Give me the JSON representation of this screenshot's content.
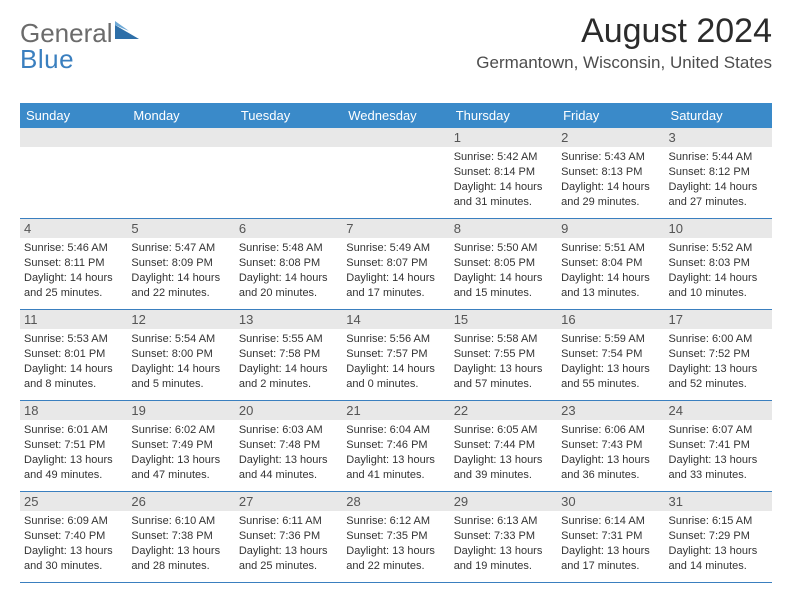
{
  "brand": {
    "word1": "General",
    "word2": "Blue"
  },
  "title": "August 2024",
  "location": "Germantown, Wisconsin, United States",
  "colors": {
    "header_bg": "#3a8ac9",
    "accent": "#3a7fbf",
    "daynum_bg": "#e8e8e8",
    "text": "#333333",
    "logo_gray": "#6b6b6b"
  },
  "weekdays": [
    "Sunday",
    "Monday",
    "Tuesday",
    "Wednesday",
    "Thursday",
    "Friday",
    "Saturday"
  ],
  "weeks": [
    [
      {
        "n": "",
        "sr": "",
        "ss": "",
        "dl": ""
      },
      {
        "n": "",
        "sr": "",
        "ss": "",
        "dl": ""
      },
      {
        "n": "",
        "sr": "",
        "ss": "",
        "dl": ""
      },
      {
        "n": "",
        "sr": "",
        "ss": "",
        "dl": ""
      },
      {
        "n": "1",
        "sr": "Sunrise: 5:42 AM",
        "ss": "Sunset: 8:14 PM",
        "dl": "Daylight: 14 hours and 31 minutes."
      },
      {
        "n": "2",
        "sr": "Sunrise: 5:43 AM",
        "ss": "Sunset: 8:13 PM",
        "dl": "Daylight: 14 hours and 29 minutes."
      },
      {
        "n": "3",
        "sr": "Sunrise: 5:44 AM",
        "ss": "Sunset: 8:12 PM",
        "dl": "Daylight: 14 hours and 27 minutes."
      }
    ],
    [
      {
        "n": "4",
        "sr": "Sunrise: 5:46 AM",
        "ss": "Sunset: 8:11 PM",
        "dl": "Daylight: 14 hours and 25 minutes."
      },
      {
        "n": "5",
        "sr": "Sunrise: 5:47 AM",
        "ss": "Sunset: 8:09 PM",
        "dl": "Daylight: 14 hours and 22 minutes."
      },
      {
        "n": "6",
        "sr": "Sunrise: 5:48 AM",
        "ss": "Sunset: 8:08 PM",
        "dl": "Daylight: 14 hours and 20 minutes."
      },
      {
        "n": "7",
        "sr": "Sunrise: 5:49 AM",
        "ss": "Sunset: 8:07 PM",
        "dl": "Daylight: 14 hours and 17 minutes."
      },
      {
        "n": "8",
        "sr": "Sunrise: 5:50 AM",
        "ss": "Sunset: 8:05 PM",
        "dl": "Daylight: 14 hours and 15 minutes."
      },
      {
        "n": "9",
        "sr": "Sunrise: 5:51 AM",
        "ss": "Sunset: 8:04 PM",
        "dl": "Daylight: 14 hours and 13 minutes."
      },
      {
        "n": "10",
        "sr": "Sunrise: 5:52 AM",
        "ss": "Sunset: 8:03 PM",
        "dl": "Daylight: 14 hours and 10 minutes."
      }
    ],
    [
      {
        "n": "11",
        "sr": "Sunrise: 5:53 AM",
        "ss": "Sunset: 8:01 PM",
        "dl": "Daylight: 14 hours and 8 minutes."
      },
      {
        "n": "12",
        "sr": "Sunrise: 5:54 AM",
        "ss": "Sunset: 8:00 PM",
        "dl": "Daylight: 14 hours and 5 minutes."
      },
      {
        "n": "13",
        "sr": "Sunrise: 5:55 AM",
        "ss": "Sunset: 7:58 PM",
        "dl": "Daylight: 14 hours and 2 minutes."
      },
      {
        "n": "14",
        "sr": "Sunrise: 5:56 AM",
        "ss": "Sunset: 7:57 PM",
        "dl": "Daylight: 14 hours and 0 minutes."
      },
      {
        "n": "15",
        "sr": "Sunrise: 5:58 AM",
        "ss": "Sunset: 7:55 PM",
        "dl": "Daylight: 13 hours and 57 minutes."
      },
      {
        "n": "16",
        "sr": "Sunrise: 5:59 AM",
        "ss": "Sunset: 7:54 PM",
        "dl": "Daylight: 13 hours and 55 minutes."
      },
      {
        "n": "17",
        "sr": "Sunrise: 6:00 AM",
        "ss": "Sunset: 7:52 PM",
        "dl": "Daylight: 13 hours and 52 minutes."
      }
    ],
    [
      {
        "n": "18",
        "sr": "Sunrise: 6:01 AM",
        "ss": "Sunset: 7:51 PM",
        "dl": "Daylight: 13 hours and 49 minutes."
      },
      {
        "n": "19",
        "sr": "Sunrise: 6:02 AM",
        "ss": "Sunset: 7:49 PM",
        "dl": "Daylight: 13 hours and 47 minutes."
      },
      {
        "n": "20",
        "sr": "Sunrise: 6:03 AM",
        "ss": "Sunset: 7:48 PM",
        "dl": "Daylight: 13 hours and 44 minutes."
      },
      {
        "n": "21",
        "sr": "Sunrise: 6:04 AM",
        "ss": "Sunset: 7:46 PM",
        "dl": "Daylight: 13 hours and 41 minutes."
      },
      {
        "n": "22",
        "sr": "Sunrise: 6:05 AM",
        "ss": "Sunset: 7:44 PM",
        "dl": "Daylight: 13 hours and 39 minutes."
      },
      {
        "n": "23",
        "sr": "Sunrise: 6:06 AM",
        "ss": "Sunset: 7:43 PM",
        "dl": "Daylight: 13 hours and 36 minutes."
      },
      {
        "n": "24",
        "sr": "Sunrise: 6:07 AM",
        "ss": "Sunset: 7:41 PM",
        "dl": "Daylight: 13 hours and 33 minutes."
      }
    ],
    [
      {
        "n": "25",
        "sr": "Sunrise: 6:09 AM",
        "ss": "Sunset: 7:40 PM",
        "dl": "Daylight: 13 hours and 30 minutes."
      },
      {
        "n": "26",
        "sr": "Sunrise: 6:10 AM",
        "ss": "Sunset: 7:38 PM",
        "dl": "Daylight: 13 hours and 28 minutes."
      },
      {
        "n": "27",
        "sr": "Sunrise: 6:11 AM",
        "ss": "Sunset: 7:36 PM",
        "dl": "Daylight: 13 hours and 25 minutes."
      },
      {
        "n": "28",
        "sr": "Sunrise: 6:12 AM",
        "ss": "Sunset: 7:35 PM",
        "dl": "Daylight: 13 hours and 22 minutes."
      },
      {
        "n": "29",
        "sr": "Sunrise: 6:13 AM",
        "ss": "Sunset: 7:33 PM",
        "dl": "Daylight: 13 hours and 19 minutes."
      },
      {
        "n": "30",
        "sr": "Sunrise: 6:14 AM",
        "ss": "Sunset: 7:31 PM",
        "dl": "Daylight: 13 hours and 17 minutes."
      },
      {
        "n": "31",
        "sr": "Sunrise: 6:15 AM",
        "ss": "Sunset: 7:29 PM",
        "dl": "Daylight: 13 hours and 14 minutes."
      }
    ]
  ]
}
